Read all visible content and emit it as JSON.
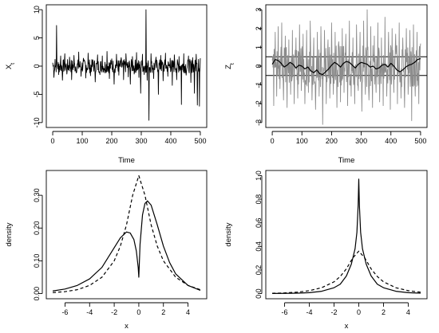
{
  "chart_data": [
    {
      "type": "line",
      "panel": "top-left",
      "xlabel": "Time",
      "ylabel": "X",
      "ylabel_sub": "t",
      "xlim": [
        0,
        500
      ],
      "ylim": [
        -10,
        10
      ],
      "xticks": [
        0,
        100,
        200,
        300,
        400,
        500
      ],
      "yticks": [
        -10,
        -5,
        0,
        5,
        10
      ],
      "series": [
        {
          "style": "solid",
          "color": "#000000",
          "spikes": [
            [
              0,
              0.6
            ],
            [
              4,
              -2.0
            ],
            [
              8,
              1.2
            ],
            [
              13,
              7.2
            ],
            [
              20,
              -1.5
            ],
            [
              27,
              1.8
            ],
            [
              33,
              -2.5
            ],
            [
              41,
              2.2
            ],
            [
              48,
              -1.4
            ],
            [
              57,
              1.6
            ],
            [
              64,
              -2.4
            ],
            [
              72,
              1.9
            ],
            [
              80,
              -1.2
            ],
            [
              88,
              2.5
            ],
            [
              96,
              -1.8
            ],
            [
              104,
              1.4
            ],
            [
              112,
              -2.1
            ],
            [
              120,
              2.3
            ],
            [
              128,
              -1.7
            ],
            [
              136,
              1.1
            ],
            [
              144,
              -2.8
            ],
            [
              152,
              2.0
            ],
            [
              160,
              -1.5
            ],
            [
              168,
              1.8
            ],
            [
              176,
              -1.2
            ],
            [
              184,
              2.6
            ],
            [
              192,
              -2.2
            ],
            [
              200,
              1.3
            ],
            [
              208,
              -3.2
            ],
            [
              216,
              2.1
            ],
            [
              224,
              -1.6
            ],
            [
              232,
              1.5
            ],
            [
              240,
              -2.4
            ],
            [
              248,
              2.2
            ],
            [
              256,
              -1.9
            ],
            [
              263,
              -3.2
            ],
            [
              270,
              1.7
            ],
            [
              276,
              -1.4
            ],
            [
              284,
              2.4
            ],
            [
              292,
              -2.0
            ],
            [
              298,
              -4.8
            ],
            [
              304,
              2.1
            ],
            [
              310,
              -1.5
            ],
            [
              316,
              10.0
            ],
            [
              320,
              -2.5
            ],
            [
              326,
              -9.6
            ],
            [
              333,
              2.2
            ],
            [
              342,
              -2.2
            ],
            [
              350,
              1.6
            ],
            [
              358,
              -5.0
            ],
            [
              366,
              1.9
            ],
            [
              374,
              -2.6
            ],
            [
              382,
              2.3
            ],
            [
              390,
              -1.8
            ],
            [
              398,
              1.4
            ],
            [
              405,
              -3.4
            ],
            [
              412,
              2.0
            ],
            [
              420,
              -2.4
            ],
            [
              428,
              1.7
            ],
            [
              436,
              -6.8
            ],
            [
              444,
              2.2
            ],
            [
              452,
              -1.6
            ],
            [
              460,
              1.8
            ],
            [
              468,
              -2.9
            ],
            [
              474,
              1.5
            ],
            [
              480,
              -4.8
            ],
            [
              486,
              2.1
            ],
            [
              490,
              -6.9
            ],
            [
              494,
              1.2
            ],
            [
              497,
              -7.1
            ],
            [
              500,
              1.4
            ]
          ]
        }
      ]
    },
    {
      "type": "line",
      "panel": "top-right",
      "xlabel": "Time",
      "ylabel": "Z",
      "ylabel_sub": "t",
      "xlim": [
        0,
        500
      ],
      "ylim": [
        -3,
        3
      ],
      "xticks": [
        0,
        100,
        200,
        300,
        400,
        500
      ],
      "yticks": [
        -3,
        -2,
        -1,
        0,
        1,
        2,
        3
      ],
      "hlines": [
        0.5,
        -0.5
      ],
      "series": [
        {
          "style": "solid",
          "color": "#8c8c8c",
          "spikes": [
            [
              0,
              0.3
            ],
            [
              5,
              -2.1
            ],
            [
              10,
              1.8
            ],
            [
              15,
              -1.6
            ],
            [
              20,
              2.1
            ],
            [
              26,
              -1.2
            ],
            [
              32,
              2.3
            ],
            [
              38,
              -1.8
            ],
            [
              44,
              1.6
            ],
            [
              50,
              -2.2
            ],
            [
              56,
              1.4
            ],
            [
              62,
              -1.5
            ],
            [
              68,
              1.9
            ],
            [
              74,
              -2.0
            ],
            [
              80,
              1.5
            ],
            [
              86,
              -1.7
            ],
            [
              92,
              2.2
            ],
            [
              98,
              -1.3
            ],
            [
              104,
              1.7
            ],
            [
              110,
              -2.0
            ],
            [
              116,
              1.9
            ],
            [
              122,
              -1.4
            ],
            [
              128,
              2.4
            ],
            [
              134,
              -1.8
            ],
            [
              140,
              1.5
            ],
            [
              146,
              -2.3
            ],
            [
              152,
              1.8
            ],
            [
              158,
              -1.6
            ],
            [
              164,
              2.1
            ],
            [
              170,
              -3.1
            ],
            [
              176,
              1.9
            ],
            [
              182,
              -2.0
            ],
            [
              188,
              1.4
            ],
            [
              194,
              -1.7
            ],
            [
              200,
              2.3
            ],
            [
              206,
              -1.5
            ],
            [
              212,
              1.8
            ],
            [
              218,
              -2.2
            ],
            [
              224,
              1.3
            ],
            [
              230,
              -1.9
            ],
            [
              236,
              2.0
            ],
            [
              242,
              -1.4
            ],
            [
              248,
              1.7
            ],
            [
              254,
              -2.1
            ],
            [
              260,
              2.4
            ],
            [
              266,
              -1.6
            ],
            [
              272,
              1.5
            ],
            [
              278,
              -2.0
            ],
            [
              284,
              2.2
            ],
            [
              290,
              -1.3
            ],
            [
              296,
              1.8
            ],
            [
              302,
              -2.4
            ],
            [
              308,
              2.4
            ],
            [
              314,
              -1.5
            ],
            [
              320,
              3.0
            ],
            [
              326,
              -1.8
            ],
            [
              332,
              2.1
            ],
            [
              338,
              -2.2
            ],
            [
              344,
              1.6
            ],
            [
              350,
              -1.4
            ],
            [
              356,
              2.3
            ],
            [
              362,
              -1.9
            ],
            [
              368,
              1.5
            ],
            [
              374,
              -2.1
            ],
            [
              380,
              2.6
            ],
            [
              386,
              -1.6
            ],
            [
              392,
              1.8
            ],
            [
              398,
              -2.3
            ],
            [
              404,
              2.0
            ],
            [
              410,
              -1.4
            ],
            [
              416,
              1.7
            ],
            [
              422,
              -2.0
            ],
            [
              428,
              2.3
            ],
            [
              434,
              -1.7
            ],
            [
              440,
              1.5
            ],
            [
              446,
              -2.2
            ],
            [
              452,
              2.0
            ],
            [
              458,
              -1.5
            ],
            [
              464,
              1.9
            ],
            [
              470,
              -2.9
            ],
            [
              476,
              2.2
            ],
            [
              482,
              -1.6
            ],
            [
              488,
              1.8
            ],
            [
              494,
              -2.0
            ],
            [
              500,
              1.2
            ]
          ]
        },
        {
          "style": "solid",
          "color": "#000000",
          "x": [
            0,
            10,
            20,
            30,
            40,
            50,
            60,
            70,
            80,
            90,
            100,
            110,
            120,
            130,
            140,
            150,
            160,
            170,
            180,
            190,
            200,
            210,
            220,
            230,
            240,
            250,
            260,
            270,
            280,
            290,
            300,
            310,
            320,
            330,
            340,
            350,
            360,
            370,
            380,
            390,
            400,
            410,
            420,
            430,
            440,
            450,
            460,
            470,
            480,
            490,
            500
          ],
          "y": [
            0.1,
            0.35,
            0.3,
            0.15,
            -0.05,
            0.05,
            0.2,
            0.1,
            -0.1,
            0.05,
            0.0,
            -0.15,
            -0.05,
            -0.25,
            -0.35,
            -0.2,
            -0.4,
            -0.45,
            -0.3,
            -0.15,
            0.05,
            0.2,
            0.1,
            -0.05,
            0.15,
            0.25,
            0.2,
            0.05,
            -0.1,
            0.1,
            0.2,
            0.15,
            0.1,
            -0.05,
            0.0,
            -0.15,
            -0.1,
            0.05,
            0.1,
            -0.05,
            0.15,
            0.0,
            -0.2,
            -0.3,
            -0.2,
            -0.05,
            0.05,
            0.1,
            0.2,
            0.35,
            0.4
          ]
        }
      ]
    },
    {
      "type": "line",
      "panel": "bottom-left",
      "xlabel": "x",
      "ylabel": "density",
      "xlim": [
        -7,
        5
      ],
      "ylim": [
        0,
        0.36
      ],
      "xticks": [
        -6,
        -4,
        -2,
        0,
        2,
        4
      ],
      "yticks": [
        "0.00",
        "0.10",
        "0.20",
        "0.30"
      ],
      "series": [
        {
          "style": "solid",
          "x": [
            -7,
            -6,
            -5,
            -4,
            -3,
            -2,
            -1.5,
            -1,
            -0.7,
            -0.4,
            -0.2,
            -0.05,
            0,
            0.1,
            0.3,
            0.5,
            0.7,
            1,
            1.5,
            2,
            2.5,
            3,
            4,
            5
          ],
          "y": [
            0.008,
            0.014,
            0.025,
            0.045,
            0.08,
            0.14,
            0.17,
            0.188,
            0.185,
            0.165,
            0.13,
            0.08,
            0.05,
            0.15,
            0.24,
            0.275,
            0.283,
            0.27,
            0.21,
            0.145,
            0.095,
            0.06,
            0.025,
            0.01
          ]
        },
        {
          "style": "dashed",
          "x": [
            -7,
            -6,
            -5,
            -4,
            -3,
            -2,
            -1.5,
            -1,
            -0.5,
            0,
            0.5,
            1,
            1.5,
            2,
            3,
            4,
            5
          ],
          "y": [
            0.003,
            0.006,
            0.012,
            0.025,
            0.05,
            0.1,
            0.145,
            0.21,
            0.3,
            0.36,
            0.3,
            0.21,
            0.145,
            0.1,
            0.05,
            0.025,
            0.012
          ]
        }
      ]
    },
    {
      "type": "line",
      "panel": "bottom-right",
      "xlabel": "x",
      "ylabel": "density",
      "xlim": [
        -7,
        5
      ],
      "ylim": [
        0,
        1.0
      ],
      "xticks": [
        -6,
        -4,
        -2,
        0,
        2,
        4
      ],
      "yticks": [
        "0.0",
        "0.2",
        "0.4",
        "0.6",
        "0.8",
        "1.0"
      ],
      "series": [
        {
          "style": "solid",
          "x": [
            -7,
            -6,
            -5,
            -4,
            -3,
            -2,
            -1.5,
            -1,
            -0.6,
            -0.3,
            -0.15,
            -0.05,
            0,
            0.05,
            0.15,
            0.3,
            0.6,
            1,
            1.5,
            2,
            3,
            4,
            5
          ],
          "y": [
            0.001,
            0.002,
            0.004,
            0.008,
            0.02,
            0.05,
            0.08,
            0.15,
            0.25,
            0.38,
            0.52,
            0.75,
            0.97,
            0.75,
            0.52,
            0.38,
            0.25,
            0.15,
            0.08,
            0.05,
            0.02,
            0.008,
            0.004
          ]
        },
        {
          "style": "dashed",
          "x": [
            -7,
            -6,
            -5,
            -4,
            -3,
            -2,
            -1.5,
            -1,
            -0.5,
            0,
            0.5,
            1,
            1.5,
            2,
            3,
            4,
            5
          ],
          "y": [
            0.003,
            0.006,
            0.012,
            0.025,
            0.05,
            0.1,
            0.145,
            0.21,
            0.3,
            0.36,
            0.3,
            0.21,
            0.145,
            0.1,
            0.05,
            0.025,
            0.012
          ]
        }
      ]
    }
  ]
}
